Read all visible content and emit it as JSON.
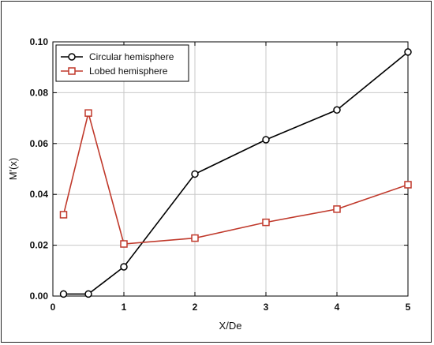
{
  "chart_data": {
    "type": "line",
    "xlabel": "X/De",
    "ylabel": "M'(x)",
    "xlim": [
      0,
      5
    ],
    "ylim": [
      0,
      0.1
    ],
    "x_ticks": [
      0,
      1,
      2,
      3,
      4,
      5
    ],
    "y_ticks": [
      0.0,
      0.02,
      0.04,
      0.06,
      0.08,
      0.1
    ],
    "x_tick_labels": [
      "0",
      "1",
      "2",
      "3",
      "4",
      "5"
    ],
    "y_tick_labels": [
      "0.00",
      "0.02",
      "0.04",
      "0.06",
      "0.08",
      "0.10"
    ],
    "grid": true,
    "legend_position": "top-left",
    "series": [
      {
        "name": "Circular hemisphere",
        "color": "#000000",
        "marker": "circle",
        "x": [
          0.15,
          0.5,
          1,
          2,
          3,
          4,
          5
        ],
        "y": [
          0.0008,
          0.0008,
          0.0115,
          0.048,
          0.0615,
          0.0732,
          0.096
        ]
      },
      {
        "name": "Lobed hemisphere",
        "color": "#c0392b",
        "marker": "square",
        "x": [
          0.15,
          0.5,
          1,
          2,
          3,
          4,
          5
        ],
        "y": [
          0.032,
          0.072,
          0.0205,
          0.0228,
          0.029,
          0.0342,
          0.0438
        ]
      }
    ]
  }
}
